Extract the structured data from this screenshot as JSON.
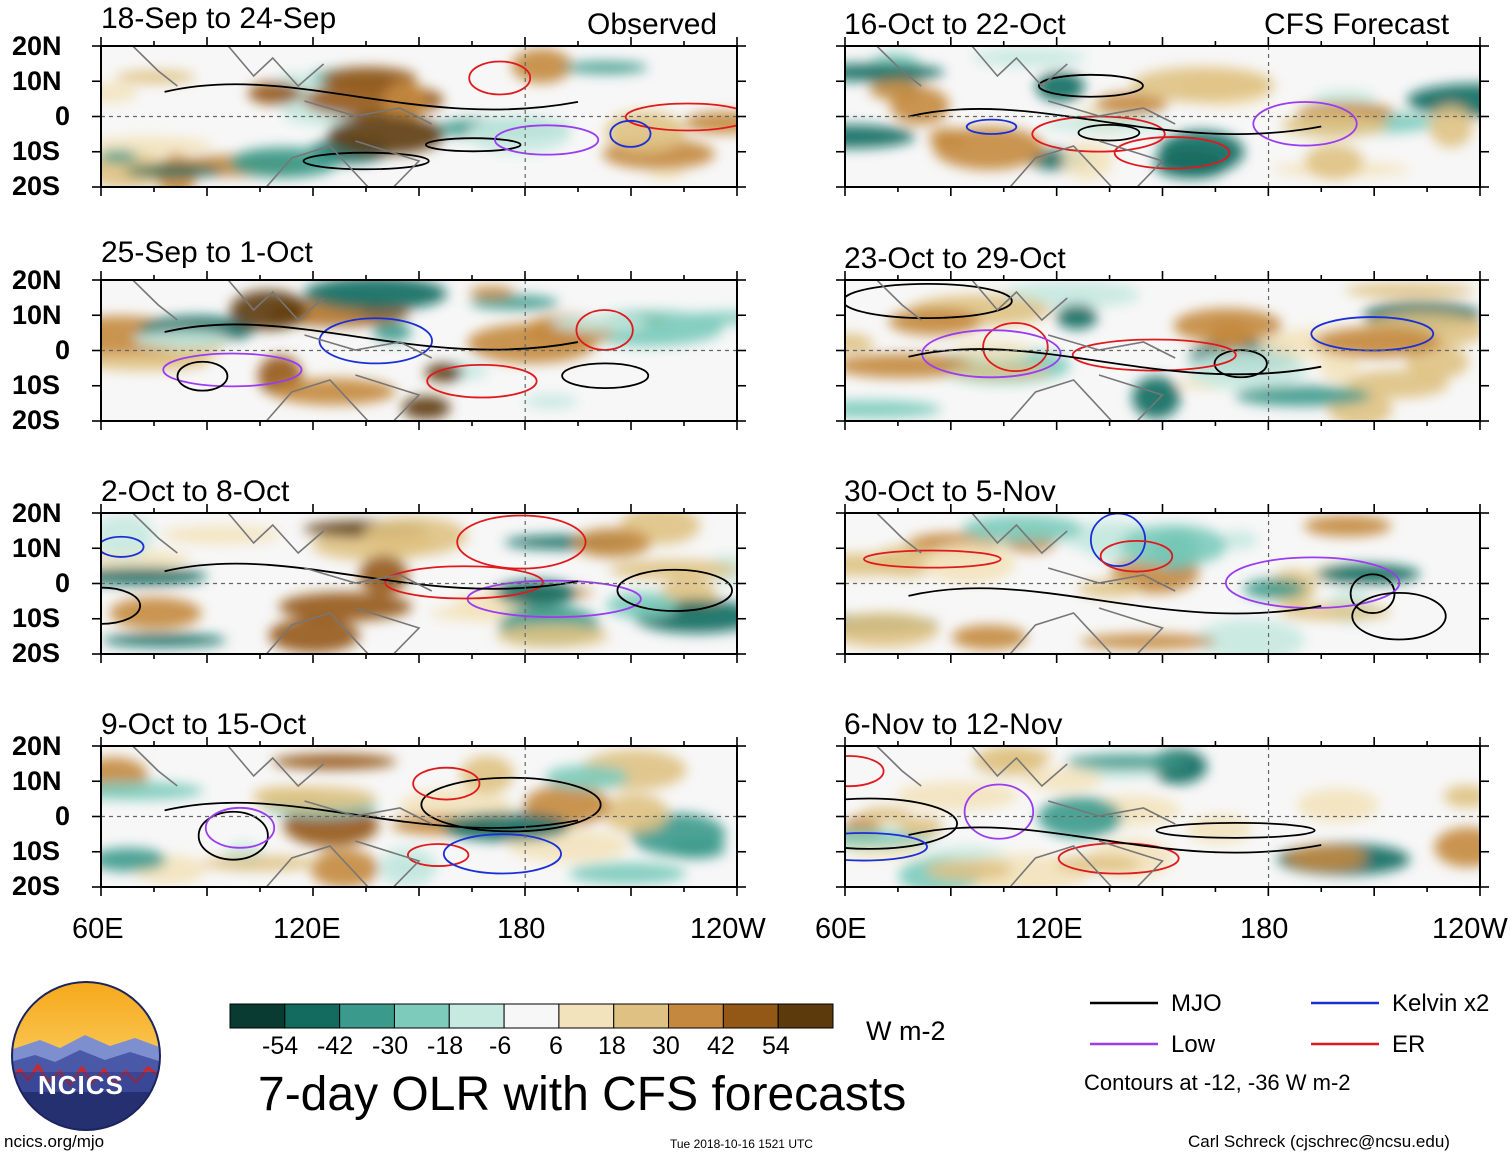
{
  "columns": {
    "left_title": "Observed",
    "right_title": "CFS Forecast"
  },
  "panels": {
    "left": [
      {
        "title": "18-Sep to 24-Sep"
      },
      {
        "title": "25-Sep to 1-Oct"
      },
      {
        "title": "2-Oct to 8-Oct"
      },
      {
        "title": "9-Oct to 15-Oct"
      }
    ],
    "right": [
      {
        "title": "16-Oct to 22-Oct"
      },
      {
        "title": "23-Oct to 29-Oct"
      },
      {
        "title": "30-Oct to 5-Nov"
      },
      {
        "title": "6-Nov to 12-Nov"
      }
    ]
  },
  "axes": {
    "lat_labels": [
      "20N",
      "10N",
      "0",
      "10S",
      "20S"
    ],
    "lon_labels": [
      "60E",
      "120E",
      "180",
      "120W"
    ]
  },
  "colorbar": {
    "ticks": [
      "-54",
      "-42",
      "-30",
      "-18",
      "-6",
      "6",
      "18",
      "30",
      "42",
      "54"
    ],
    "colors": [
      "#0a3b33",
      "#136b60",
      "#3a9a8c",
      "#7ccbbb",
      "#c6e9e0",
      "#f7f7f7",
      "#f3e3bd",
      "#dfc283",
      "#c4893f",
      "#935716",
      "#5c3a0c"
    ],
    "unit": "W m-2"
  },
  "legend": {
    "mjo": "MJO",
    "kelvin": "Kelvin x2",
    "low": "Low",
    "er": "ER",
    "note": "Contours at -12, -36 W m-2",
    "colors": {
      "mjo": "#000000",
      "kelvin": "#1a2fd6",
      "low": "#9b3cf0",
      "er": "#e0191d"
    }
  },
  "main_title": "7-day OLR with CFS forecasts",
  "logo_text": "NCICS",
  "footer": {
    "url": "ncics.org/mjo",
    "timestamp": "Tue 2018-10-16 1521 UTC",
    "author": "Carl Schreck (cjschrec@ncsu.edu)"
  }
}
